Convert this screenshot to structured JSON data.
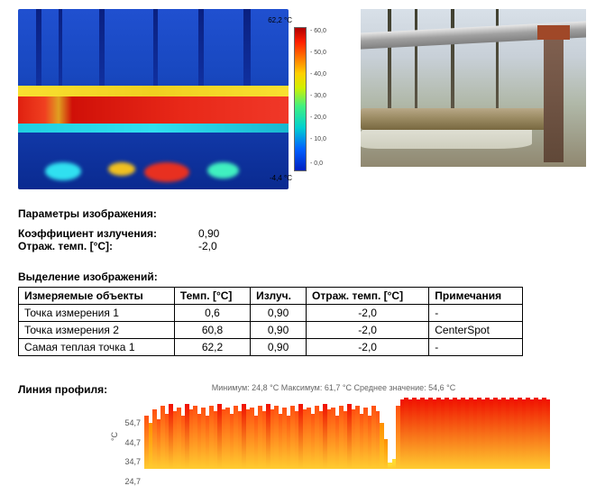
{
  "thermal": {
    "scale_max_label": "62,2 °C",
    "scale_min_label": "-4,4 °C",
    "tick_labels": [
      "60,0",
      "50,0",
      "40,0",
      "30,0",
      "20,0",
      "10,0",
      "0,0"
    ],
    "tick_positions_pct": [
      3,
      18,
      33,
      48,
      63,
      78,
      95
    ],
    "gradient_colors": [
      "#b00000",
      "#ff2000",
      "#ff8000",
      "#ffd000",
      "#d0f000",
      "#40f080",
      "#00d0d0",
      "#0060ff",
      "#0020c0"
    ],
    "background_color": "#1040c0",
    "hot_color": "#e82818",
    "warm_color": "#f0d020",
    "cool_color": "#20d0e0"
  },
  "photo": {
    "sky_color": "#d0d8e0",
    "ground_color": "#908870",
    "pipe_color": "#988860",
    "support_color": "#604838"
  },
  "params": {
    "title": "Параметры изображения:",
    "rows": [
      {
        "label": "Коэффициент излучения:",
        "value": "0,90"
      },
      {
        "label": "Отраж. темп. [°C]:",
        "value": "-2,0"
      }
    ]
  },
  "table": {
    "title": "Выделение изображений:",
    "columns": [
      "Измеряемые объекты",
      "Темп. [°C]",
      "Излуч.",
      "Отраж. темп. [°C]",
      "Примечания"
    ],
    "rows": [
      [
        "Точка измерения 1",
        "0,6",
        "0,90",
        "-2,0",
        "-"
      ],
      [
        "Точка измерения 2",
        "60,8",
        "0,90",
        "-2,0",
        "CenterSpot"
      ],
      [
        "Самая теплая точка 1",
        "62,2",
        "0,90",
        "-2,0",
        "-"
      ]
    ]
  },
  "profile": {
    "label": "Линия профиля:",
    "header_min": "Минимум: 24,8 °C",
    "header_max": "Максимум: 61,7 °C",
    "header_avg": "Среднее значение: 54,6 °C",
    "ylabel": "°C",
    "ylim": [
      24.7,
      62
    ],
    "ytick_values": [
      54.7,
      44.7,
      34.7,
      24.7
    ],
    "ytick_labels": [
      "54,7",
      "44,7",
      "34,7",
      "24,7"
    ],
    "bar_values": [
      52,
      48,
      55,
      50,
      57,
      53,
      58,
      54,
      56,
      52,
      58,
      55,
      57,
      53,
      56,
      52,
      57,
      54,
      58,
      55,
      56,
      53,
      57,
      54,
      58,
      55,
      56,
      52,
      57,
      54,
      58,
      55,
      57,
      53,
      56,
      52,
      57,
      54,
      58,
      55,
      56,
      53,
      57,
      54,
      58,
      55,
      56,
      52,
      57,
      54,
      58,
      55,
      57,
      53,
      56,
      52,
      57,
      54,
      48,
      40,
      28,
      30,
      57,
      60,
      61,
      60,
      61,
      60,
      61,
      60,
      61,
      60,
      61,
      60,
      61,
      60,
      61,
      60,
      61,
      60,
      61,
      60,
      61,
      60,
      61,
      60,
      61,
      60,
      61,
      60,
      61,
      60,
      61,
      60,
      61,
      60,
      61,
      60,
      61,
      60
    ],
    "color_stops": [
      {
        "t": 25,
        "c": "#ffe030"
      },
      {
        "t": 40,
        "c": "#ff9000"
      },
      {
        "t": 50,
        "c": "#ff5010"
      },
      {
        "t": 58,
        "c": "#f01000"
      },
      {
        "t": 62,
        "c": "#c00000"
      }
    ]
  }
}
